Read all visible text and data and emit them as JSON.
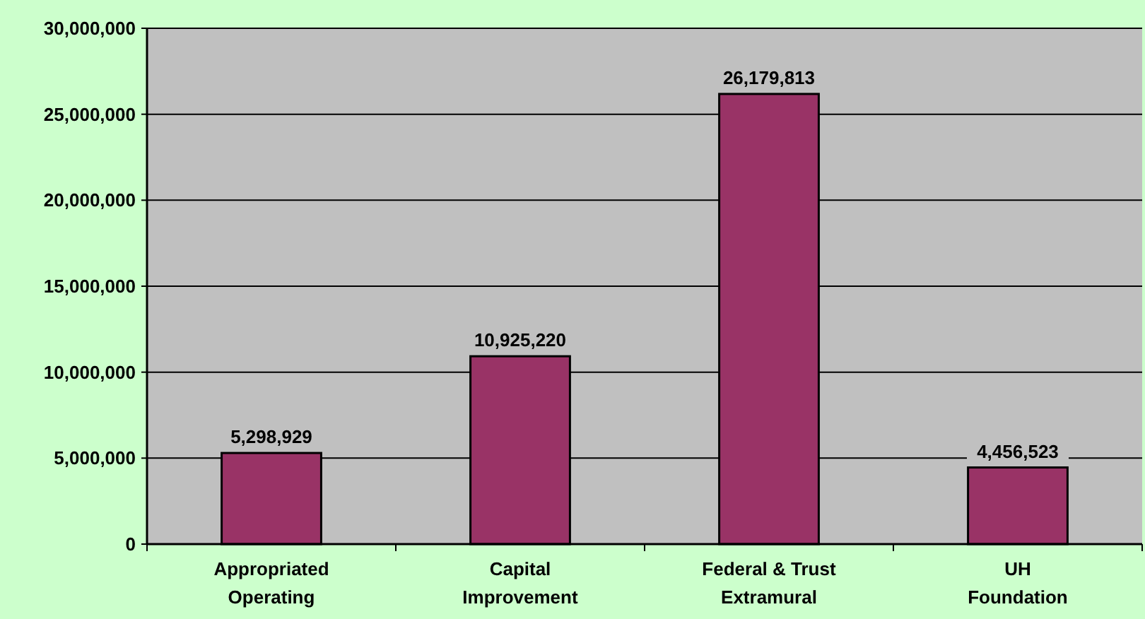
{
  "chart_data": {
    "type": "bar",
    "categories": [
      "Appropriated Operating",
      "Capital Improvement",
      "Federal & Trust Extramural",
      "UH Foundation"
    ],
    "values": [
      5298929,
      10925220,
      26179813,
      4456523
    ],
    "color": "#993366",
    "ylim": [
      0,
      30000000
    ],
    "yticks": [
      {
        "value": 0,
        "label": "0"
      },
      {
        "value": 5000000,
        "label": "5,000,000"
      },
      {
        "value": 10000000,
        "label": "10,000,000"
      },
      {
        "value": 15000000,
        "label": "15,000,000"
      },
      {
        "value": 20000000,
        "label": "20,000,000"
      },
      {
        "value": 25000000,
        "label": "25,000,000"
      },
      {
        "value": 30000000,
        "label": "30,000,000"
      }
    ],
    "grid": "y",
    "value_labels": [
      "5,298,929",
      "10,925,220",
      "26,179,813",
      "4,456,523"
    ]
  }
}
